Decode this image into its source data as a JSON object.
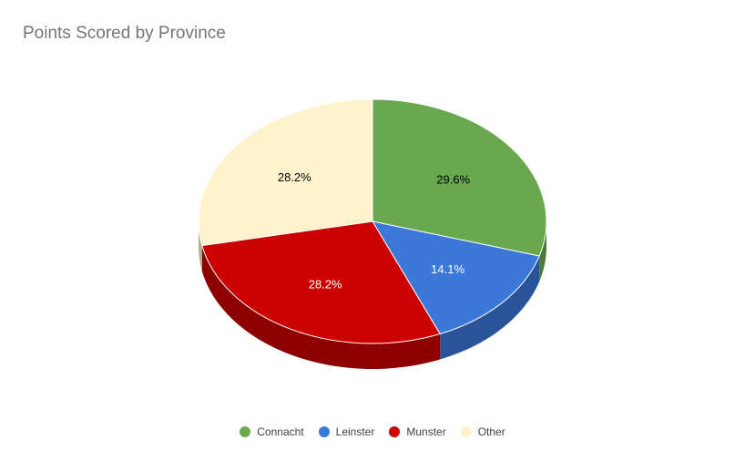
{
  "chart_data": {
    "type": "pie",
    "title": "Points Scored by Province",
    "categories": [
      "Connacht",
      "Leinster",
      "Munster",
      "Other"
    ],
    "values": [
      29.6,
      14.1,
      28.2,
      28.2
    ],
    "value_labels": [
      "29.6%",
      "14.1%",
      "28.2%",
      "28.2%"
    ],
    "colors": [
      "#6aa84f",
      "#3c78d8",
      "#cc0000",
      "#fff2cc"
    ],
    "side_colors": [
      "#4a7a36",
      "#2a5499",
      "#8e0000",
      "#b3aa8f"
    ],
    "label_colors": [
      "#000000",
      "#ffffff",
      "#ffffff",
      "#000000"
    ],
    "legend_position": "bottom",
    "style": "3d"
  }
}
